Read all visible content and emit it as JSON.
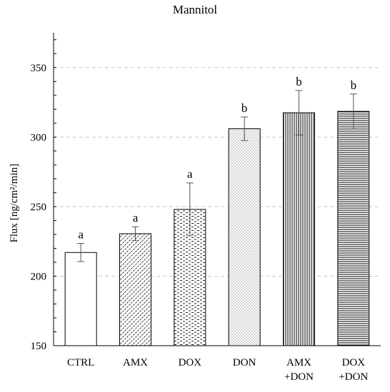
{
  "chart_data": {
    "type": "bar",
    "title": "Mannitol",
    "xlabel": "",
    "ylabel": "Flux [ng/cm²/min]",
    "ylim": [
      150,
      375
    ],
    "yticks": [
      150,
      200,
      250,
      300,
      350
    ],
    "grid": "horizontal dashed",
    "categories": [
      [
        "CTRL"
      ],
      [
        "AMX"
      ],
      [
        "DOX"
      ],
      [
        "DON"
      ],
      [
        "AMX",
        "+DON"
      ],
      [
        "DOX",
        "+DON"
      ]
    ],
    "values": [
      217,
      230.5,
      248,
      306,
      317.5,
      318.5
    ],
    "error": [
      6.5,
      5,
      19,
      8.5,
      16,
      12.5
    ],
    "significance": [
      "a",
      "a",
      "a",
      "b",
      "b",
      "b"
    ],
    "patterns": [
      "none",
      "diagonal-dashes",
      "horizontal-dashes",
      "fine-dots",
      "vertical-lines",
      "horizontal-lines"
    ],
    "colors": {
      "bar_stroke": "#000000",
      "bar_fill": "#ffffff",
      "grid": "#c8c8c8",
      "axis": "#000000",
      "error": "#555555"
    }
  }
}
